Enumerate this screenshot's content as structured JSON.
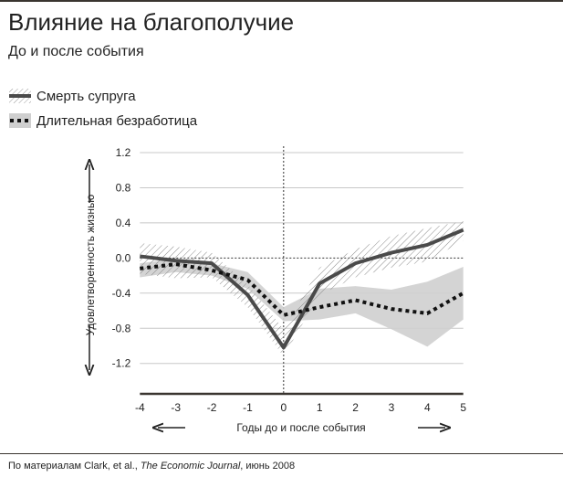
{
  "header": {
    "title": "Влияние на благополучие",
    "subtitle": "До и после события"
  },
  "source": {
    "prefix": "По материалам Clark, et al., ",
    "journal": "The Economic Journal",
    "suffix": ", июнь 2008"
  },
  "chart_data": {
    "type": "line",
    "title": "Влияние на благополучие",
    "subtitle": "До и после события",
    "xlabel": "Годы до и после события",
    "ylabel": "Удовлетворенность жизнью",
    "x": [
      -4,
      -3,
      -2,
      -1,
      0,
      1,
      2,
      3,
      4,
      5
    ],
    "x_ticks": [
      "-4",
      "-3",
      "-2",
      "-1",
      "0",
      "1",
      "2",
      "3",
      "4",
      "5"
    ],
    "y_ticks": [
      "1.2",
      "0.8",
      "0.4",
      "0.0",
      "-0.4",
      "-0.8",
      "-1.2"
    ],
    "y_tick_values": [
      1.2,
      0.8,
      0.4,
      0.0,
      -0.4,
      -0.8,
      -1.2
    ],
    "xlim": [
      -4,
      5
    ],
    "ylim": [
      -1.5,
      1.2
    ],
    "grid": true,
    "legend_position": "top-left",
    "reference_lines": {
      "x": 0,
      "y": 0
    },
    "series": [
      {
        "name": "Смерть супруга",
        "style": "solid",
        "color": "#4a4a4a",
        "band_style": "hatched",
        "values": [
          0.02,
          -0.03,
          -0.06,
          -0.42,
          -1.02,
          -0.29,
          -0.06,
          0.06,
          0.15,
          0.32
        ],
        "upper": [
          0.17,
          0.13,
          0.06,
          -0.3,
          -0.81,
          -0.11,
          0.1,
          0.25,
          0.34,
          0.42
        ],
        "lower": [
          -0.18,
          -0.23,
          -0.22,
          -0.56,
          -1.12,
          -0.42,
          -0.22,
          -0.11,
          -0.04,
          0.2
        ]
      },
      {
        "name": "Длительная безработица",
        "style": "dotted",
        "color": "#111111",
        "band_style": "gray",
        "band_color": "#cfcfcf",
        "values": [
          -0.12,
          -0.07,
          -0.14,
          -0.25,
          -0.65,
          -0.56,
          -0.48,
          -0.58,
          -0.63,
          -0.4
        ],
        "upper": [
          -0.06,
          -0.01,
          -0.06,
          -0.16,
          -0.56,
          -0.35,
          -0.32,
          -0.36,
          -0.27,
          -0.1
        ],
        "lower": [
          -0.22,
          -0.16,
          -0.2,
          -0.35,
          -0.72,
          -0.7,
          -0.63,
          -0.81,
          -1.01,
          -0.7
        ]
      }
    ]
  }
}
